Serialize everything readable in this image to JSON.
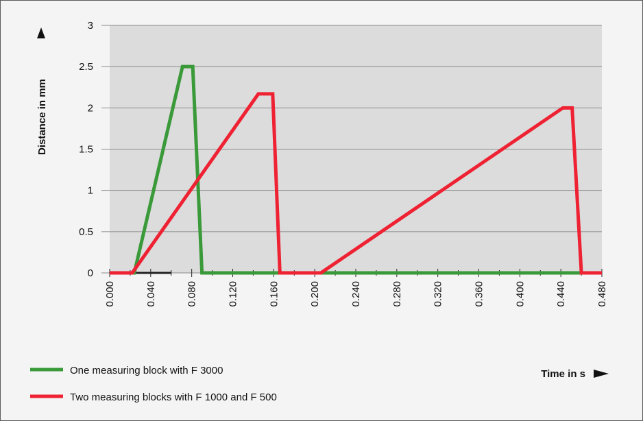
{
  "chart_data": {
    "type": "line",
    "title": "",
    "xlabel": "Time in s",
    "ylabel": "Distance in mm",
    "xlim": [
      0,
      0.48
    ],
    "ylim": [
      0,
      3
    ],
    "x_ticks": [
      "0.000",
      "0.040",
      "0.080",
      "0.120",
      "0.160",
      "0.200",
      "0.240",
      "0.280",
      "0.320",
      "0.360",
      "0.400",
      "0.440",
      "0.480"
    ],
    "y_ticks": [
      "0",
      "0.5",
      "1",
      "1.5",
      "2",
      "2.5",
      "3"
    ],
    "grid": true,
    "legend_position": "bottom-left",
    "series": [
      {
        "name": "One measuring block with F 3000",
        "color": "#3a9a3a",
        "points": [
          [
            0.0,
            0
          ],
          [
            0.024,
            0
          ],
          [
            0.071,
            2.5
          ],
          [
            0.081,
            2.5
          ],
          [
            0.09,
            0
          ],
          [
            0.48,
            0
          ]
        ]
      },
      {
        "name": "Two measuring blocks with F 1000 and F 500",
        "color": "#ee2233",
        "points": [
          [
            0.0,
            0
          ],
          [
            0.022,
            0
          ],
          [
            0.145,
            2.17
          ],
          [
            0.159,
            2.17
          ],
          [
            0.166,
            0
          ],
          [
            0.206,
            0
          ],
          [
            0.442,
            2.0
          ],
          [
            0.451,
            2.0
          ],
          [
            0.46,
            0
          ],
          [
            0.48,
            0
          ]
        ]
      }
    ],
    "baseline_color": "#222222",
    "baseline_segment": [
      0.0,
      0.06
    ]
  },
  "colors": {
    "plot_background": "#dcdcdc",
    "grid": "#8a8a8a",
    "page_background": "#f4f4f4"
  }
}
